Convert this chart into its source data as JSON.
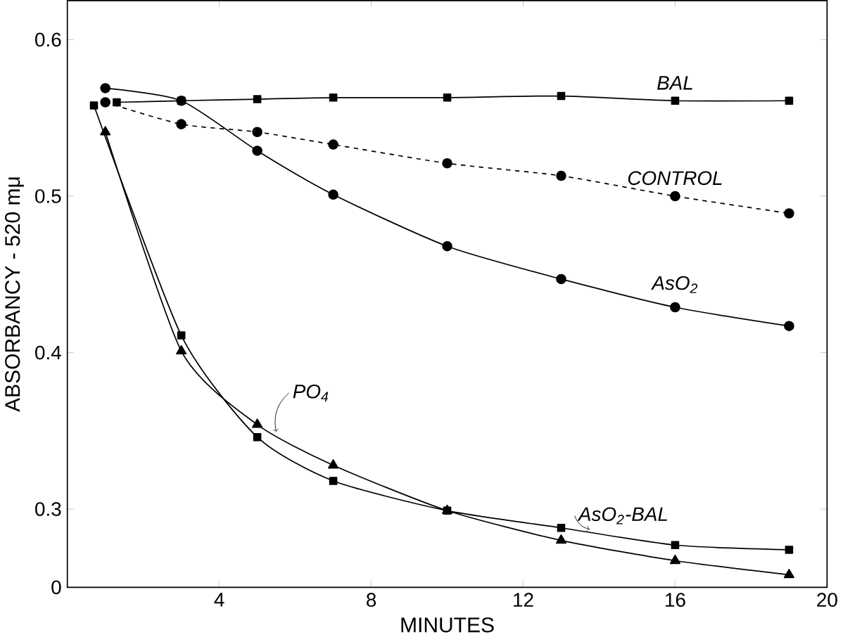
{
  "chart_data": {
    "type": "line",
    "xlabel": "MINUTES",
    "ylabel": "ABSORBANCY - 520 mμ",
    "xlim": [
      0,
      20
    ],
    "ylim": [
      0.25,
      0.625
    ],
    "xticks": [
      4,
      8,
      12,
      16,
      20
    ],
    "yticks": [
      {
        "value": 0.25,
        "label": "0"
      },
      0.3,
      0.4,
      0.5,
      0.6
    ],
    "grid": false,
    "line_style": "solid",
    "series": [
      {
        "name": "BAL",
        "color": "#000000",
        "marker": "square",
        "x": [
          1.3,
          3,
          5,
          7,
          10,
          13,
          16,
          19
        ],
        "values": [
          0.56,
          0.561,
          0.562,
          0.563,
          0.563,
          0.564,
          0.561,
          0.561
        ]
      },
      {
        "name": "CONTROL",
        "color": "#000000",
        "marker": "circle",
        "line_style": "dashed",
        "x": [
          1,
          3,
          5,
          7,
          10,
          13,
          16,
          19
        ],
        "values": [
          0.56,
          0.546,
          0.541,
          0.533,
          0.521,
          0.513,
          0.5,
          0.489
        ]
      },
      {
        "name": "AsO$_{2}$",
        "color": "#000000",
        "marker": "circle",
        "x": [
          1,
          3,
          5,
          7,
          10,
          13,
          16,
          19
        ],
        "values": [
          0.569,
          0.561,
          0.529,
          0.501,
          0.468,
          0.447,
          0.429,
          0.417
        ]
      },
      {
        "name": "AsO$_{2}$-BAL",
        "color": "#000000",
        "marker": "square",
        "x": [
          0.7,
          3,
          5,
          7,
          10,
          13,
          16,
          19
        ],
        "values": [
          0.558,
          0.411,
          0.346,
          0.318,
          0.299,
          0.288,
          0.277,
          0.274
        ]
      },
      {
        "name": "PO$_{4}$",
        "color": "#000000",
        "marker": "triangle",
        "x": [
          1,
          3,
          5,
          7,
          10,
          13,
          16,
          19
        ],
        "values": [
          0.541,
          0.401,
          0.354,
          0.328,
          0.299,
          0.28,
          0.267,
          0.258
        ]
      }
    ]
  }
}
